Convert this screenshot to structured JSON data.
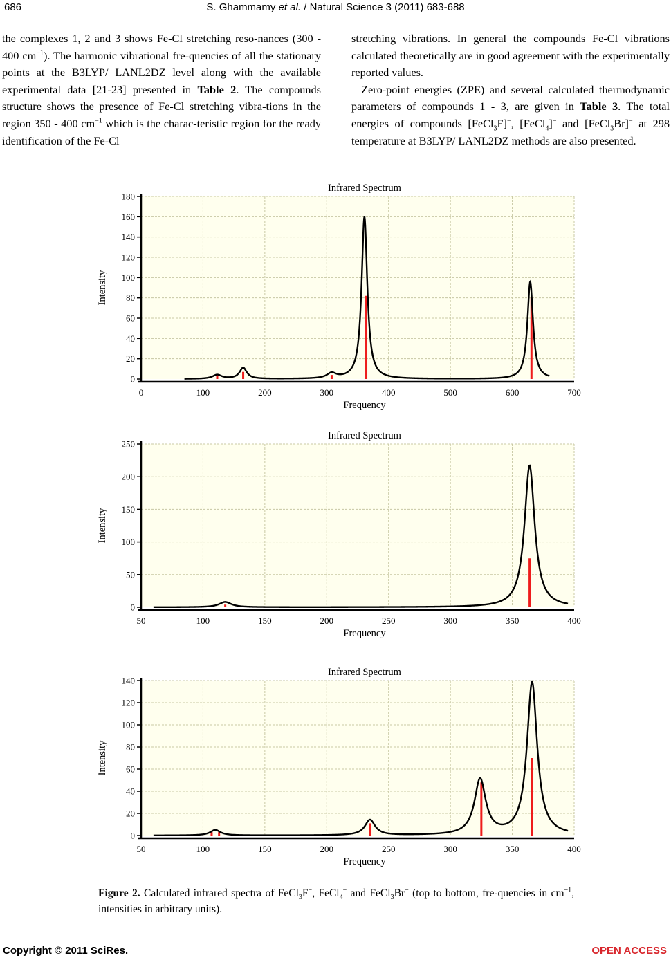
{
  "header": {
    "page_number": "686",
    "running_head_prefix": "S. Ghammamy ",
    "running_head_etal": "et al.",
    "running_head_suffix": " / Natural Science 3 (2011) 683-688"
  },
  "body": {
    "left_col": {
      "t1": "the complexes 1, 2 and 3 shows Fe-Cl stretching reso-nances (300 - 400 cm",
      "sup1": "−1",
      "t2": "). The harmonic vibrational fre-quencies of all the stationary points at the B3LYP/ LANL2DZ level along with the available experimental data [21-23] presented in ",
      "bold1": "Table 2",
      "t3": ". The compounds structure shows the presence of Fe-Cl stretching vibra-tions in the region 350 - 400 cm",
      "sup2": "−1",
      "t4": " which is the charac-teristic region for the ready identification of the Fe-Cl"
    },
    "right_col": {
      "p1": "stretching vibrations. In general the compounds Fe-Cl vibrations calculated theoretically are in good agreement with the experimentally reported values.",
      "p2_t1": "Zero-point energies (ZPE) and several calculated thermodynamic parameters of compounds 1 - 3, are given in ",
      "p2_bold": "Table 3",
      "p2_t2": ". The total energies of compounds [FeCl",
      "p2_sub1": "3",
      "p2_t3": "F]",
      "p2_sup1": "−",
      "p2_t4": ", [FeCl",
      "p2_sub2": "4",
      "p2_t5": "]",
      "p2_sup2": "−",
      "p2_t6": " and [FeCl",
      "p2_sub3": "3",
      "p2_t7": "Br]",
      "p2_sup3": "−",
      "p2_t8": " at 298 temperature at B3LYP/ LANL2DZ methods are also presented."
    }
  },
  "chart_data": [
    {
      "type": "line",
      "title": "Infrared Spectrum",
      "xlabel": "Frequency",
      "ylabel": "Intensity",
      "xlim": [
        0,
        700
      ],
      "ylim": [
        0,
        180
      ],
      "xticks": [
        0,
        100,
        200,
        300,
        400,
        500,
        600,
        700
      ],
      "yticks": [
        0,
        20,
        40,
        60,
        80,
        100,
        120,
        140,
        160,
        180
      ],
      "grid": true,
      "curve_range": [
        70,
        660
      ],
      "peaks": [
        {
          "x": 123,
          "y": 4,
          "width": 9
        },
        {
          "x": 165,
          "y": 11,
          "width": 7
        },
        {
          "x": 308,
          "y": 5,
          "width": 9
        },
        {
          "x": 361,
          "y": 160,
          "width": 5.5
        },
        {
          "x": 629,
          "y": 96,
          "width": 5.5
        }
      ],
      "sticks": [
        {
          "x": 123,
          "y": 4
        },
        {
          "x": 165,
          "y": 7
        },
        {
          "x": 308,
          "y": 4
        },
        {
          "x": 364,
          "y": 82
        },
        {
          "x": 631,
          "y": 80
        }
      ],
      "colors": {
        "curve": "#000000",
        "stick": "#ee1c1c",
        "grid": "#c8c8a4",
        "background": "#ffffee"
      }
    },
    {
      "type": "line",
      "title": "Infrared Spectrum",
      "xlabel": "Frequency",
      "ylabel": "Intensity",
      "xlim": [
        50,
        400
      ],
      "ylim": [
        0,
        250
      ],
      "xticks": [
        50,
        100,
        150,
        200,
        250,
        300,
        350,
        400
      ],
      "yticks": [
        0,
        50,
        100,
        150,
        200,
        250
      ],
      "grid": true,
      "curve_range": [
        60,
        395
      ],
      "peaks": [
        {
          "x": 118,
          "y": 8,
          "width": 6
        },
        {
          "x": 364,
          "y": 217,
          "width": 5
        }
      ],
      "sticks": [
        {
          "x": 118,
          "y": 4
        },
        {
          "x": 364,
          "y": 75
        }
      ],
      "colors": {
        "curve": "#000000",
        "stick": "#ee1c1c",
        "grid": "#c8c8a4",
        "background": "#ffffee"
      }
    },
    {
      "type": "line",
      "title": "Infrared Spectrum",
      "xlabel": "Frequency",
      "ylabel": "Intensity",
      "xlim": [
        50,
        400
      ],
      "ylim": [
        0,
        140
      ],
      "xticks": [
        50,
        100,
        150,
        200,
        250,
        300,
        350,
        400
      ],
      "yticks": [
        0,
        20,
        40,
        60,
        80,
        100,
        120,
        140
      ],
      "grid": true,
      "curve_range": [
        60,
        395
      ],
      "peaks": [
        {
          "x": 110,
          "y": 5,
          "width": 5
        },
        {
          "x": 235,
          "y": 14,
          "width": 5
        },
        {
          "x": 324,
          "y": 50,
          "width": 5.5
        },
        {
          "x": 366,
          "y": 138,
          "width": 5
        }
      ],
      "sticks": [
        {
          "x": 107,
          "y": 3
        },
        {
          "x": 113,
          "y": 3
        },
        {
          "x": 235,
          "y": 11
        },
        {
          "x": 325,
          "y": 48
        },
        {
          "x": 366,
          "y": 70
        }
      ],
      "colors": {
        "curve": "#000000",
        "stick": "#ee1c1c",
        "grid": "#c8c8a4",
        "background": "#ffffee"
      }
    }
  ],
  "caption": {
    "label": "Figure 2.",
    "t1": " Calculated infrared spectra of FeCl",
    "sub1": "3",
    "t2": "F",
    "sup1": "−",
    "t3": ", FeCl",
    "sub2": "4",
    "sup2": "−",
    "t4": " and FeCl",
    "sub3": "3",
    "t5": "Br",
    "sup3": "−",
    "t6": " (top to bottom, fre-quencies in cm",
    "sup4": "−1",
    "t7": ", intensities in arbitrary units)."
  },
  "footer": {
    "copyright": "Copyright © 2011 SciRes.",
    "open_access": "OPEN ACCESS"
  }
}
